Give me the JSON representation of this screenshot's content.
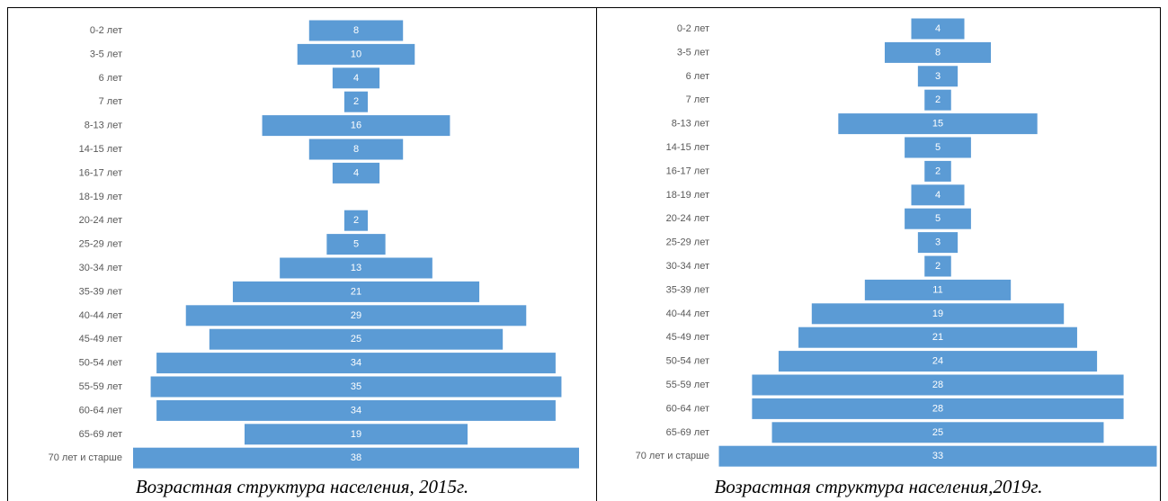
{
  "colors": {
    "bar": "#5b9bd5",
    "bar_label": "#ffffff",
    "category_label": "#595959"
  },
  "chart_data": [
    {
      "type": "bar",
      "orientation": "horizontal",
      "layout": "population-pyramid (centered bars)",
      "title": "Возрастная структура населения, 2015г.",
      "categories": [
        "0-2 лет",
        "3-5 лет",
        "6 лет",
        "7 лет",
        "8-13 лет",
        "14-15 лет",
        "16-17 лет",
        "18-19 лет",
        "20-24 лет",
        "25-29 лет",
        "30-34 лет",
        "35-39 лет",
        "40-44 лет",
        "45-49 лет",
        "50-54 лет",
        "55-59 лет",
        "60-64 лет",
        "65-69 лет",
        "70 лет и старше"
      ],
      "values": [
        8,
        10,
        4,
        2,
        16,
        8,
        4,
        null,
        2,
        5,
        13,
        21,
        29,
        25,
        34,
        35,
        34,
        19,
        38
      ],
      "grid": false,
      "legend": "none"
    },
    {
      "type": "bar",
      "orientation": "horizontal",
      "layout": "population-pyramid (centered bars)",
      "title": "Возрастная структура населения,2019г.",
      "categories": [
        "0-2 лет",
        "3-5 лет",
        "6 лет",
        "7 лет",
        "8-13 лет",
        "14-15 лет",
        "16-17 лет",
        "18-19 лет",
        "20-24 лет",
        "25-29 лет",
        "30-34 лет",
        "35-39 лет",
        "40-44 лет",
        "45-49 лет",
        "50-54 лет",
        "55-59 лет",
        "60-64 лет",
        "65-69 лет",
        "70 лет и старше"
      ],
      "values": [
        4,
        8,
        3,
        2,
        15,
        5,
        2,
        4,
        5,
        3,
        2,
        11,
        19,
        21,
        24,
        28,
        28,
        25,
        33
      ],
      "grid": false,
      "legend": "none"
    }
  ]
}
